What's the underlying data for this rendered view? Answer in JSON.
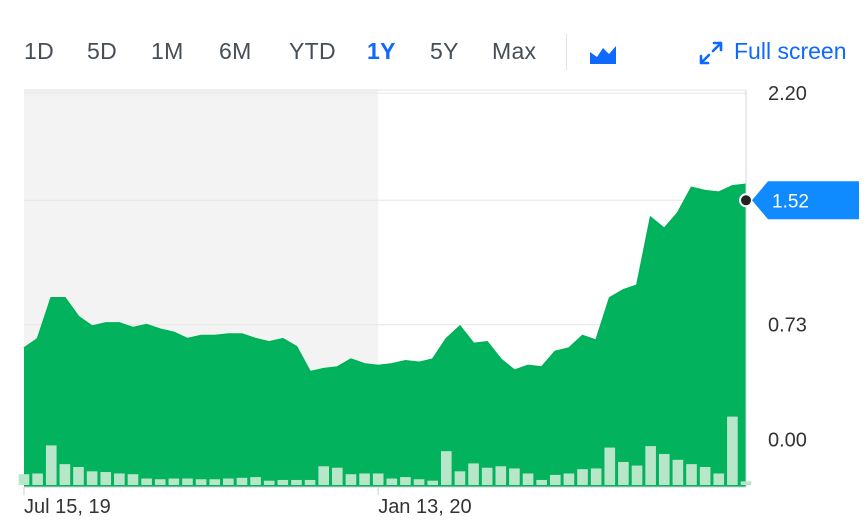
{
  "range_tabs": [
    {
      "label": "1D",
      "active": false
    },
    {
      "label": "5D",
      "active": false
    },
    {
      "label": "1M",
      "active": false
    },
    {
      "label": "6M",
      "active": false
    },
    {
      "label": "YTD",
      "active": false
    },
    {
      "label": "1Y",
      "active": true
    },
    {
      "label": "5Y",
      "active": false
    },
    {
      "label": "Max",
      "active": false
    }
  ],
  "chart_type_icon": "mountain-chart-icon",
  "fullscreen": {
    "label": "Full screen",
    "icon": "expand-arrows-icon"
  },
  "colors": {
    "accent": "#0f69ff",
    "area": "#00b15a",
    "volume": "#b7e6c8",
    "shade": "#f3f3f3",
    "grid": "#e6e6e6",
    "tag": "#0f8bff"
  },
  "chart_data": {
    "type": "area",
    "ylabel": "",
    "y_ticks": [
      "2.20",
      "1.52",
      "0.73",
      "0.00"
    ],
    "y_tick_values": [
      2.2,
      1.52,
      0.73,
      0.0
    ],
    "ylim": [
      -0.3,
      2.22
    ],
    "current_price_label": "1.52",
    "current_price": 1.52,
    "x_tick_labels": [
      "Jul 15, 19",
      "Jan 13, 20"
    ],
    "shaded_region_end_index": 26,
    "series": [
      {
        "values": [
          0.58,
          0.64,
          0.9,
          0.9,
          0.78,
          0.72,
          0.74,
          0.74,
          0.71,
          0.73,
          0.7,
          0.68,
          0.64,
          0.66,
          0.66,
          0.67,
          0.67,
          0.64,
          0.62,
          0.64,
          0.59,
          0.43,
          0.45,
          0.46,
          0.51,
          0.48,
          0.47,
          0.48,
          0.5,
          0.49,
          0.51,
          0.64,
          0.72,
          0.61,
          0.62,
          0.51,
          0.44,
          0.47,
          0.46,
          0.56,
          0.58,
          0.66,
          0.63,
          0.9,
          0.95,
          0.98,
          1.41,
          1.34,
          1.44,
          1.6,
          1.58,
          1.57,
          1.61,
          1.62
        ]
      },
      {
        "values": [
          15,
          16,
          55,
          29,
          25,
          19,
          18,
          16,
          15,
          9,
          8,
          9,
          9,
          8,
          8,
          9,
          10,
          11,
          6,
          7,
          7,
          7,
          26,
          24,
          15,
          16,
          16,
          9,
          11,
          8,
          6,
          47,
          19,
          30,
          24,
          26,
          23,
          16,
          7,
          14,
          16,
          22,
          23,
          52,
          32,
          27,
          54,
          43,
          35,
          29,
          25,
          16,
          95,
          5
        ]
      }
    ]
  }
}
